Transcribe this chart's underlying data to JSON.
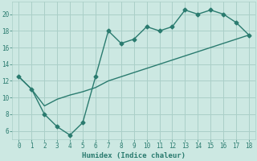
{
  "line1_x": [
    0,
    1,
    2,
    3,
    4,
    5,
    6,
    7,
    8,
    9,
    10,
    11,
    12,
    13,
    14,
    15,
    16,
    17,
    18
  ],
  "line1_y": [
    12.5,
    11.0,
    8.0,
    6.5,
    5.5,
    7.0,
    12.5,
    18.0,
    16.5,
    17.0,
    18.5,
    18.0,
    18.5,
    20.5,
    20.0,
    20.5,
    20.0,
    19.0,
    17.5
  ],
  "line2_x": [
    0,
    1,
    2,
    3,
    4,
    5,
    6,
    7,
    8,
    9,
    10,
    11,
    12,
    13,
    14,
    15,
    16,
    17,
    18
  ],
  "line2_y": [
    12.5,
    11.0,
    9.0,
    9.8,
    10.3,
    10.7,
    11.2,
    12.0,
    12.5,
    13.0,
    13.5,
    14.0,
    14.5,
    15.0,
    15.5,
    16.0,
    16.5,
    17.0,
    17.5
  ],
  "color": "#2a7b6f",
  "bg_color": "#cce8e2",
  "grid_color": "#aacfc8",
  "xlabel": "Humidex (Indice chaleur)",
  "xlim": [
    -0.5,
    18.5
  ],
  "ylim": [
    5,
    21.5
  ],
  "xticks": [
    0,
    1,
    2,
    3,
    4,
    5,
    6,
    7,
    8,
    9,
    10,
    11,
    12,
    13,
    14,
    15,
    16,
    17,
    18
  ],
  "yticks": [
    6,
    8,
    10,
    12,
    14,
    16,
    18,
    20
  ],
  "marker": "D",
  "marker_size": 2.5,
  "line_width": 1.0
}
